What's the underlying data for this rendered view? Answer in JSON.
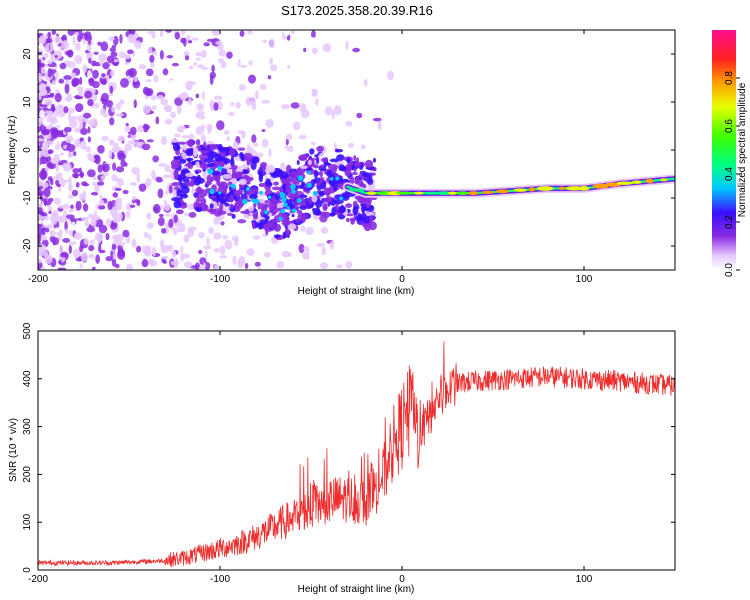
{
  "title": "S173.2025.358.20.39.R16",
  "colors": {
    "line": "#ee2c2c",
    "frame": "#000000"
  },
  "chart_data": [
    {
      "type": "heatmap",
      "title": "S173.2025.358.20.39.R16",
      "xlabel": "Height of straight line (km)",
      "ylabel": "Frequency (Hz)",
      "xlim": [
        -200,
        150
      ],
      "ylim": [
        -25,
        25
      ],
      "xticks": [
        "-200",
        "-100",
        "0",
        "100"
      ],
      "xtick_values": [
        -200,
        -100,
        0,
        100
      ],
      "yticks": [
        "20",
        "10",
        "0",
        "-10",
        "-20"
      ],
      "ytick_values": [
        20,
        10,
        0,
        -10,
        -20
      ],
      "ridge": {
        "x": [
          -120,
          -100,
          -80,
          -65,
          -50,
          -35,
          -20,
          0,
          20,
          40,
          60,
          80,
          100,
          120,
          150
        ],
        "y": [
          -5,
          -6,
          -9,
          -12,
          -6,
          -7,
          -9,
          -9,
          -9,
          -9,
          -8.5,
          -8,
          -8,
          -7,
          -6
        ]
      },
      "colorbar": {
        "label": "Normalized spectral amplitude",
        "range": [
          0,
          1
        ],
        "ticks": [
          "0.0",
          "0.2",
          "0.4",
          "0.6",
          "0.8"
        ],
        "tick_values": [
          0,
          0.2,
          0.4,
          0.6,
          0.8
        ]
      }
    },
    {
      "type": "line",
      "xlabel": "Height of straight line (km)",
      "ylabel": "SNR (10 * v/v)",
      "xlim": [
        -200,
        150
      ],
      "ylim": [
        0,
        500
      ],
      "xticks": [
        "-200",
        "-100",
        "0",
        "100"
      ],
      "xtick_values": [
        -200,
        -100,
        0,
        100
      ],
      "yticks": [
        "500",
        "400",
        "300",
        "200",
        "100",
        "0"
      ],
      "ytick_values": [
        500,
        400,
        300,
        200,
        100,
        0
      ],
      "series": [
        {
          "name": "SNR",
          "x": [
            -200,
            -180,
            -160,
            -140,
            -130,
            -120,
            -110,
            -100,
            -90,
            -80,
            -70,
            -60,
            -50,
            -40,
            -30,
            -20,
            -10,
            -5,
            0,
            5,
            10,
            20,
            30,
            40,
            60,
            80,
            100,
            120,
            150
          ],
          "y": [
            15,
            15,
            15,
            18,
            20,
            25,
            35,
            45,
            55,
            70,
            90,
            110,
            130,
            145,
            150,
            140,
            200,
            260,
            300,
            330,
            280,
            360,
            390,
            395,
            400,
            405,
            400,
            395,
            385
          ]
        }
      ]
    }
  ]
}
